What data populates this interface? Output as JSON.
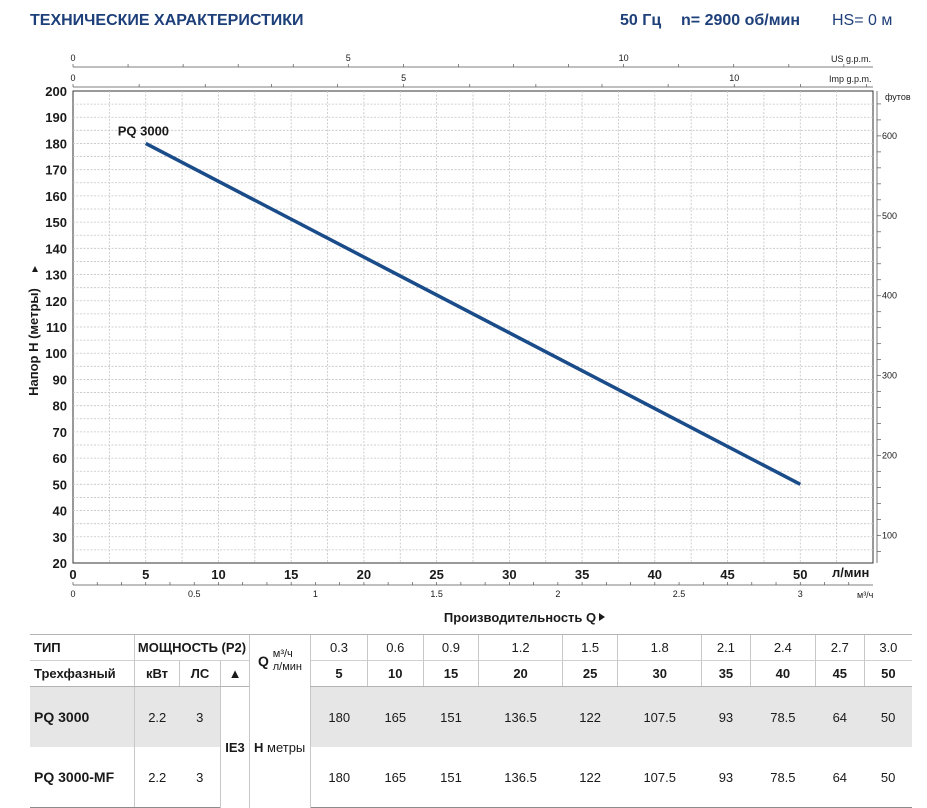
{
  "header": {
    "title": "ТЕХНИЧЕСКИЕ ХАРАКТЕРИСТИКИ",
    "freq": "50 Гц",
    "speed": "n= 2900 об/мин",
    "hs": "HS= 0 м"
  },
  "chart_data": {
    "type": "line",
    "ylabel": "Напор H (метры)",
    "xlabel": "Производительность Q",
    "xunit": "л/мин",
    "x2unit": "м³/ч",
    "y2unit": "футов",
    "top1unit": "US g.p.m.",
    "top2unit": "Imp g.p.m.",
    "xlim": [
      0,
      55
    ],
    "ylim": [
      20,
      200
    ],
    "xticks": [
      0,
      5,
      10,
      15,
      20,
      25,
      30,
      35,
      40,
      45,
      50
    ],
    "yticks": [
      20,
      30,
      40,
      50,
      60,
      70,
      80,
      90,
      100,
      110,
      120,
      130,
      140,
      150,
      160,
      170,
      180,
      190,
      200
    ],
    "m3h_ticks": [
      "0",
      "0.5",
      "1",
      "1.5",
      "2",
      "2.5",
      "3"
    ],
    "feet_ticks": [
      "100",
      "200",
      "300",
      "400",
      "500",
      "600"
    ],
    "usgpm_ticks": [
      "0",
      "5",
      "10"
    ],
    "impgpm_ticks": [
      "0",
      "5",
      "10"
    ],
    "grid": true,
    "series": [
      {
        "name": "PQ 3000",
        "color": "#1a4c8a",
        "x": [
          5,
          50
        ],
        "y": [
          180,
          50
        ]
      }
    ]
  },
  "table": {
    "type_label": "ТИП",
    "phase_label": "Трехфазный",
    "power_label": "МОЩНОСТЬ (P2)",
    "kw_label": "кВт",
    "hp_label": "ЛС",
    "tri_label": "▲",
    "q_label": "Q",
    "q_unit1": "м³/ч",
    "q_unit2": "л/мин",
    "ie_label": "IE3",
    "h_label": "H",
    "h_unit": "метры",
    "m3h": [
      "0.3",
      "0.6",
      "0.9",
      "1.2",
      "1.5",
      "1.8",
      "2.1",
      "2.4",
      "2.7",
      "3.0"
    ],
    "lmin": [
      "5",
      "10",
      "15",
      "20",
      "25",
      "30",
      "35",
      "40",
      "45",
      "50"
    ],
    "rows": [
      {
        "model": "PQ 3000",
        "kw": "2.2",
        "hp": "3",
        "h": [
          "180",
          "165",
          "151",
          "136.5",
          "122",
          "107.5",
          "93",
          "78.5",
          "64",
          "50"
        ]
      },
      {
        "model": "PQ 3000-MF",
        "kw": "2.2",
        "hp": "3",
        "h": [
          "180",
          "165",
          "151",
          "136.5",
          "122",
          "107.5",
          "93",
          "78.5",
          "64",
          "50"
        ]
      }
    ]
  }
}
